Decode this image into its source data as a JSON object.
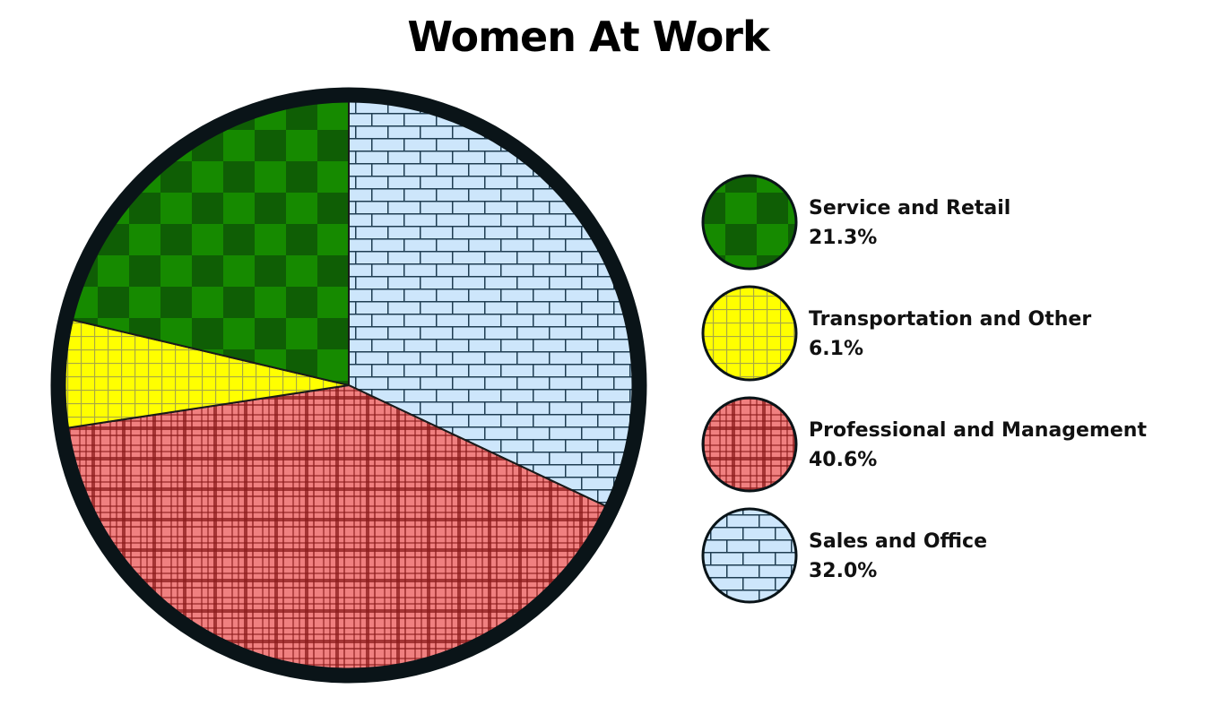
{
  "chart_data": {
    "type": "pie",
    "title": "Women At Work",
    "slices": [
      {
        "label": "Service and Retail",
        "value": 21.3,
        "value_label": "21.3%",
        "color": "#168a00",
        "pattern": "checker"
      },
      {
        "label": "Transportation and Other",
        "value": 6.1,
        "value_label": "6.1%",
        "color": "#ffff00",
        "pattern": "grid"
      },
      {
        "label": "Professional and Management",
        "value": 40.6,
        "value_label": "40.6%",
        "color": "#f08080",
        "pattern": "plaid"
      },
      {
        "label": "Sales and Office",
        "value": 32.0,
        "value_label": "32.0%",
        "color": "#cde6fb",
        "pattern": "brick"
      }
    ],
    "slice_order_clockwise_from_top": [
      "Sales and Office",
      "Professional and Management",
      "Transportation and Other",
      "Service and Retail"
    ],
    "legend_position": "right"
  }
}
